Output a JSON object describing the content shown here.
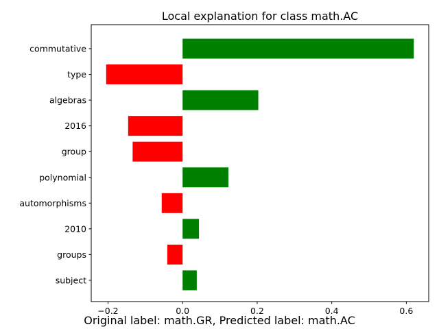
{
  "chart_data": {
    "type": "bar",
    "orientation": "horizontal",
    "title": "Local explanation for class math.AC",
    "xlabel": "",
    "ylabel": "",
    "categories": [
      "commutative",
      "type",
      "algebras",
      "2016",
      "group",
      "polynomial",
      "automorphisms",
      "2010",
      "groups",
      "subject"
    ],
    "values": [
      0.62,
      -0.205,
      0.203,
      -0.146,
      -0.134,
      0.123,
      -0.056,
      0.044,
      -0.041,
      0.038
    ],
    "xlim": [
      -0.245,
      0.66
    ],
    "xticks": [
      -0.2,
      0.0,
      0.2,
      0.4,
      0.6
    ],
    "xtick_labels": [
      "−0.2",
      "0.0",
      "0.2",
      "0.4",
      "0.6"
    ],
    "grid": false,
    "colors": {
      "positive": "#008000",
      "negative": "#ff0000",
      "axis": "#000000"
    }
  },
  "caption": "Original label: math.GR, Predicted label: math.AC"
}
